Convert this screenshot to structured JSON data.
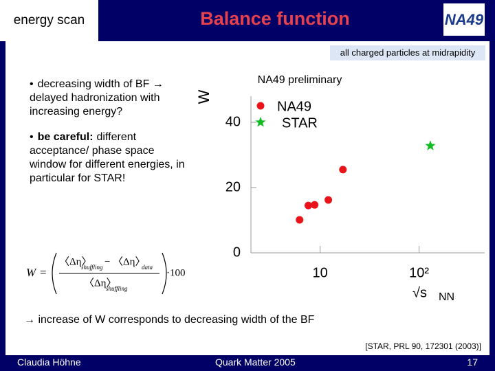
{
  "slide": {
    "header": "energy scan",
    "title": "Balance function",
    "logo": "NA49",
    "bullets": [
      {
        "marker": "•",
        "text": "decreasing width of BF → delayed hadronization with increasing energy?"
      },
      {
        "marker": "•",
        "bold": "be careful:",
        "text": "different acceptance/ phase space window for different energies, in particular for STAR!"
      }
    ],
    "formula": {
      "lhs": "W",
      "eq": "=",
      "num1": "〈Δη〉",
      "num1_sub": "shuffling",
      "minus": "−",
      "num2": "〈Δη〉",
      "num2_sub": "data",
      "den": "〈Δη〉",
      "den_sub": "shuffling",
      "times": "·100"
    },
    "conclusion": "→ increase of W corresponds to decreasing width of the BF",
    "reference": "[STAR, PRL 90, 172301 (2003)]",
    "footer": {
      "author": "Claudia Höhne",
      "event": "Quark Matter 2005",
      "page": "17"
    }
  },
  "chart_data": {
    "type": "scatter",
    "title": "NA49 preliminary",
    "note": "all charged particles at midrapidity",
    "y_label": "W",
    "x_label": "√s",
    "x_label_sub": "NN",
    "x_log": true,
    "xlim": [
      2,
      460
    ],
    "ylim": [
      0,
      48
    ],
    "xticks": [
      10,
      {
        "value": 100,
        "label": "10²"
      }
    ],
    "yticks": [
      0,
      20,
      40
    ],
    "series": [
      {
        "name": "NA49",
        "color": "#e8141a",
        "marker": "circle",
        "x": [
          6.2,
          7.6,
          8.8,
          12.1,
          17.0
        ],
        "values": [
          10.1,
          14.5,
          14.7,
          16.2,
          25.5
        ]
      },
      {
        "name": "STAR",
        "color": "#11bb22",
        "marker": "star",
        "x": [
          130
        ],
        "values": [
          32.8
        ]
      }
    ]
  }
}
